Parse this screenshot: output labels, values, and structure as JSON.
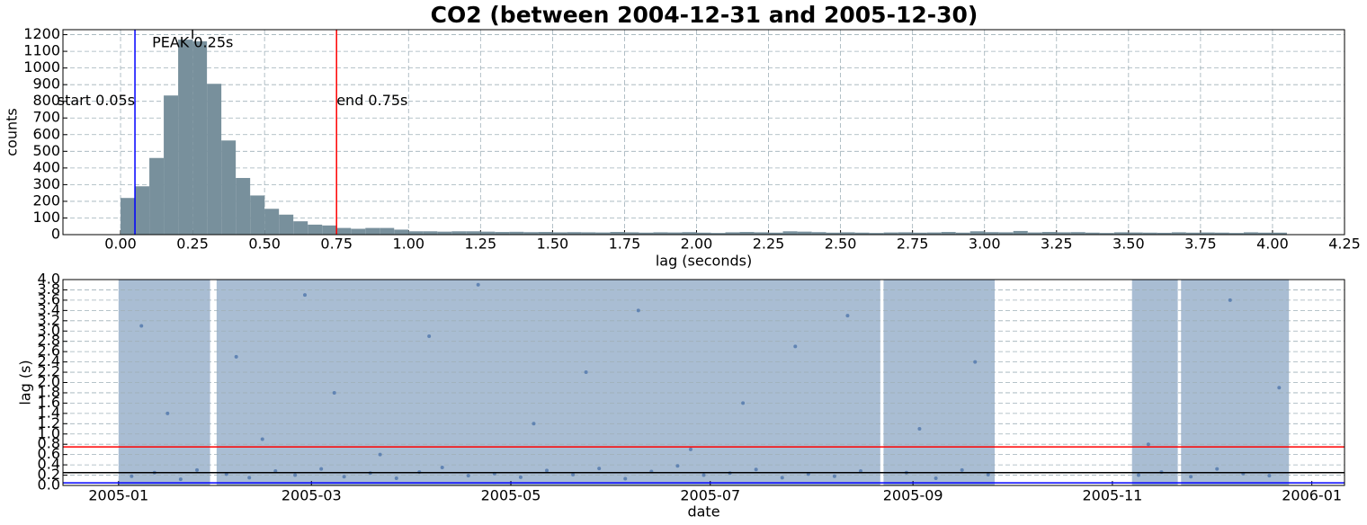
{
  "chart_data": [
    {
      "type": "histogram",
      "title": "CO2 (between 2004-12-31 and 2005-12-30)",
      "xlabel": "lag (seconds)",
      "ylabel": "counts",
      "color": "#78909c",
      "grid": true,
      "bins": [
        0,
        0.05,
        0.1,
        0.15,
        0.2,
        0.25,
        0.3,
        0.35,
        0.4,
        0.45,
        0.5,
        0.55,
        0.6,
        0.65,
        0.7,
        0.75,
        0.8,
        0.85,
        0.9,
        0.95,
        1,
        1.05,
        1.1,
        1.15,
        1.2,
        1.25,
        1.3,
        1.35,
        1.4,
        1.45,
        1.5,
        1.55,
        1.6,
        1.65,
        1.7,
        1.75,
        1.8,
        1.85,
        1.9,
        1.95,
        2,
        2.05,
        2.1,
        2.15,
        2.2,
        2.25,
        2.3,
        2.35,
        2.4,
        2.45,
        2.5,
        2.55,
        2.6,
        2.65,
        2.7,
        2.75,
        2.8,
        2.85,
        2.9,
        2.95,
        3,
        3.05,
        3.1,
        3.15,
        3.2,
        3.25,
        3.3,
        3.35,
        3.4,
        3.45,
        3.5,
        3.55,
        3.6,
        3.65,
        3.7,
        3.75,
        3.8,
        3.85,
        3.9,
        3.95,
        4,
        4.05
      ],
      "values": [
        220,
        290,
        460,
        835,
        1170,
        1160,
        905,
        565,
        340,
        235,
        155,
        120,
        80,
        60,
        55,
        40,
        35,
        40,
        40,
        30,
        20,
        20,
        18,
        20,
        20,
        18,
        16,
        17,
        15,
        16,
        14,
        15,
        14,
        13,
        16,
        14,
        12,
        14,
        13,
        15,
        12,
        10,
        14,
        16,
        14,
        12,
        20,
        18,
        15,
        12,
        14,
        12,
        10,
        13,
        14,
        12,
        13,
        16,
        12,
        20,
        15,
        14,
        22,
        13,
        16,
        14,
        15,
        12,
        10,
        14,
        13,
        12,
        11,
        14,
        12,
        13,
        12,
        10,
        14,
        12,
        12
      ],
      "xlim": [
        -0.2,
        4.25
      ],
      "xticks": [
        {
          "value": 0,
          "label": "0.00"
        },
        0.25,
        {
          "value": 0.5,
          "label": "0.50"
        },
        0.75,
        {
          "value": 1,
          "label": "1.00"
        },
        1.25,
        {
          "value": 1.5,
          "label": "1.50"
        },
        1.75,
        {
          "value": 2,
          "label": "2.00"
        },
        2.25,
        {
          "value": 2.5,
          "label": "2.50"
        },
        2.75,
        {
          "value": 3,
          "label": "3.00"
        },
        3.25,
        {
          "value": 3.5,
          "label": "3.50"
        },
        3.75,
        {
          "value": 4,
          "label": "4.00"
        },
        4.25
      ],
      "ylim": [
        0,
        1230
      ],
      "yticks": [
        0,
        100,
        200,
        300,
        400,
        500,
        600,
        700,
        800,
        900,
        1000,
        1100,
        1200
      ],
      "markers": [
        {
          "label": "start 0.05s",
          "value": 0.05,
          "color": "#0000ff"
        },
        {
          "label": "PEAK 0.25s",
          "value": 0.25,
          "color": "#000000"
        },
        {
          "label": "end 0.75s",
          "value": 0.75,
          "color": "#ff0000"
        }
      ]
    },
    {
      "type": "scatter",
      "xlabel": "date",
      "ylabel": "lag (s)",
      "color": "#4a72a8",
      "span_color": "#a9bdd3",
      "grid": true,
      "spans": [
        [
          "2005-01-01",
          "2005-01-29"
        ],
        [
          "2005-01-31",
          "2005-08-22"
        ],
        [
          "2005-08-23",
          "2005-09-26"
        ],
        [
          "2005-11-07",
          "2005-11-21"
        ],
        [
          "2005-11-22",
          "2005-12-25"
        ]
      ],
      "x": [
        "2005-01-05",
        "2005-01-12",
        "2005-01-20",
        "2005-01-25",
        "2005-02-03",
        "2005-02-10",
        "2005-02-18",
        "2005-02-24",
        "2005-03-04",
        "2005-03-11",
        "2005-03-19",
        "2005-03-27",
        "2005-04-03",
        "2005-04-10",
        "2005-04-18",
        "2005-04-26",
        "2005-05-04",
        "2005-05-12",
        "2005-05-20",
        "2005-05-28",
        "2005-06-05",
        "2005-06-13",
        "2005-06-21",
        "2005-06-29",
        "2005-07-07",
        "2005-07-15",
        "2005-07-23",
        "2005-07-31",
        "2005-08-08",
        "2005-08-16",
        "2005-08-30",
        "2005-09-08",
        "2005-09-16",
        "2005-09-24",
        "2005-11-09",
        "2005-11-16",
        "2005-11-25",
        "2005-12-03",
        "2005-12-11",
        "2005-12-19",
        "2005-01-08",
        "2005-01-16",
        "2005-02-06",
        "2005-02-14",
        "2005-02-27",
        "2005-03-08",
        "2005-03-22",
        "2005-04-06",
        "2005-04-21",
        "2005-05-08",
        "2005-05-24",
        "2005-06-09",
        "2005-06-25",
        "2005-07-11",
        "2005-07-27",
        "2005-08-12",
        "2005-09-03",
        "2005-09-20",
        "2005-11-12",
        "2005-12-07",
        "2005-12-22"
      ],
      "values": [
        0.18,
        0.25,
        0.12,
        0.3,
        0.22,
        0.15,
        0.28,
        0.2,
        0.32,
        0.17,
        0.24,
        0.14,
        0.26,
        0.35,
        0.19,
        0.23,
        0.16,
        0.29,
        0.21,
        0.33,
        0.13,
        0.27,
        0.38,
        0.2,
        0.24,
        0.31,
        0.15,
        0.22,
        0.18,
        0.28,
        0.25,
        0.14,
        0.3,
        0.21,
        0.2,
        0.26,
        0.17,
        0.32,
        0.23,
        0.19,
        3.1,
        1.4,
        2.5,
        0.9,
        3.7,
        1.8,
        0.6,
        2.9,
        3.9,
        1.2,
        2.2,
        3.4,
        0.7,
        1.6,
        2.7,
        3.3,
        1.1,
        2.4,
        0.8,
        3.6,
        1.9
      ],
      "xlim": [
        "2004-12-15",
        "2006-01-11"
      ],
      "xticks": [
        "2005-01",
        "2005-03",
        "2005-05",
        "2005-07",
        "2005-09",
        "2005-11",
        "2006-01"
      ],
      "ylim": [
        0,
        4
      ],
      "yticks": [
        {
          "value": 0,
          "label": "0.0"
        },
        0.2,
        0.4,
        0.6,
        0.8,
        {
          "value": 1,
          "label": "1.0"
        },
        1.2,
        1.4,
        1.6,
        1.8,
        {
          "value": 2,
          "label": "2.0"
        },
        2.2,
        2.4,
        2.6,
        2.8,
        {
          "value": 3,
          "label": "3.0"
        },
        3.2,
        3.4,
        3.6,
        3.8,
        {
          "value": 4,
          "label": "4.0"
        }
      ],
      "hlines": [
        {
          "value": 0.75,
          "color": "#ff0000"
        },
        {
          "value": 0.25,
          "color": "#000000"
        },
        {
          "value": 0.05,
          "color": "#0000ff"
        }
      ]
    }
  ]
}
